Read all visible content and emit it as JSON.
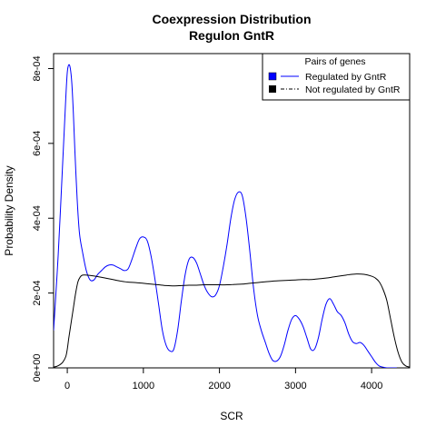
{
  "chart_data": {
    "type": "line",
    "title": "Coexpression Distribution",
    "subtitle": "Regulon GntR",
    "xlabel": "SCR",
    "ylabel": "Probability Density",
    "xlim": [
      -180,
      4500
    ],
    "ylim": [
      0,
      0.00084
    ],
    "x_ticks": [
      0,
      1000,
      2000,
      3000,
      4000
    ],
    "x_tick_labels": [
      "0",
      "1000",
      "2000",
      "3000",
      "4000"
    ],
    "y_ticks": [
      0,
      0.0002,
      0.0004,
      0.0006,
      0.0008
    ],
    "y_tick_labels": [
      "0e+00",
      "2e-04",
      "4e-04",
      "6e-04",
      "8e-04"
    ],
    "grid": false,
    "legend": {
      "title": "Pairs of genes",
      "placement": "top-right",
      "entries": [
        "Regulated by  GntR",
        "Not regulated by  GntR"
      ]
    },
    "series": [
      {
        "name": "Regulated by  GntR",
        "color": "#0000ff",
        "linestyle": "solid",
        "x": [
          -180,
          -120,
          -60,
          -20,
          0,
          20,
          40,
          60,
          80,
          100,
          130,
          160,
          200,
          250,
          300,
          350,
          400,
          450,
          500,
          550,
          600,
          650,
          700,
          750,
          800,
          850,
          900,
          950,
          1000,
          1050,
          1100,
          1150,
          1200,
          1250,
          1300,
          1350,
          1400,
          1450,
          1500,
          1550,
          1600,
          1650,
          1700,
          1750,
          1800,
          1850,
          1900,
          1950,
          2000,
          2050,
          2100,
          2150,
          2200,
          2250,
          2300,
          2350,
          2400,
          2450,
          2500,
          2550,
          2600,
          2650,
          2700,
          2750,
          2800,
          2850,
          2900,
          2950,
          3000,
          3050,
          3100,
          3150,
          3200,
          3250,
          3300,
          3350,
          3400,
          3450,
          3500,
          3550,
          3600,
          3650,
          3700,
          3750,
          3800,
          3850,
          3900,
          3950,
          4000,
          4050,
          4100,
          4150,
          4200,
          4250,
          4300,
          4330
        ],
        "y": [
          0.0001,
          0.0003,
          0.00055,
          0.00072,
          0.00079,
          0.00081,
          0.0008,
          0.00076,
          0.00068,
          0.00058,
          0.00045,
          0.00036,
          0.00031,
          0.00026,
          0.000235,
          0.000235,
          0.00025,
          0.00026,
          0.00027,
          0.000275,
          0.000275,
          0.00027,
          0.000265,
          0.00026,
          0.000265,
          0.00029,
          0.00032,
          0.000345,
          0.00035,
          0.00034,
          0.0003,
          0.00024,
          0.00017,
          0.0001,
          6e-05,
          4.5e-05,
          5e-05,
          0.0001,
          0.00018,
          0.00025,
          0.00029,
          0.000295,
          0.00028,
          0.00025,
          0.00022,
          0.0002,
          0.00019,
          0.000195,
          0.00022,
          0.00027,
          0.00033,
          0.0004,
          0.00045,
          0.00047,
          0.00046,
          0.0004,
          0.00031,
          0.00021,
          0.00014,
          0.0001,
          7e-05,
          4e-05,
          2e-05,
          1.8e-05,
          3e-05,
          6e-05,
          0.0001,
          0.00013,
          0.00014,
          0.00013,
          0.00011,
          8e-05,
          5e-05,
          5e-05,
          8e-05,
          0.00013,
          0.00017,
          0.000185,
          0.00017,
          0.00015,
          0.00014,
          0.00012,
          9e-05,
          7e-05,
          6.5e-05,
          6.8e-05,
          6e-05,
          4.5e-05,
          3e-05,
          1.5e-05,
          5e-06,
          2e-06,
          0,
          0,
          0,
          0
        ]
      },
      {
        "name": "Not regulated by  GntR",
        "color": "#000000",
        "linestyle": "solid",
        "x": [
          -180,
          -140,
          -100,
          -60,
          -20,
          0,
          20,
          50,
          80,
          110,
          140,
          170,
          200,
          250,
          300,
          400,
          500,
          600,
          700,
          800,
          900,
          1000,
          1100,
          1200,
          1300,
          1400,
          1500,
          1600,
          1700,
          1800,
          1900,
          2000,
          2100,
          2200,
          2300,
          2400,
          2500,
          2600,
          2700,
          2800,
          2900,
          3000,
          3100,
          3200,
          3300,
          3400,
          3500,
          3600,
          3700,
          3800,
          3900,
          4000,
          4050,
          4100,
          4150,
          4200,
          4250,
          4300,
          4350,
          4400,
          4450,
          4500
        ],
        "y": [
          2e-06,
          4e-06,
          8e-06,
          1.5e-05,
          3e-05,
          5e-05,
          8e-05,
          0.00012,
          0.00016,
          0.0002,
          0.00023,
          0.000243,
          0.000248,
          0.000248,
          0.000247,
          0.000244,
          0.00024,
          0.000236,
          0.000232,
          0.000229,
          0.000228,
          0.000226,
          0.000224,
          0.000222,
          0.00022,
          0.000219,
          0.00022,
          0.000221,
          0.000221,
          0.000222,
          0.000222,
          0.000222,
          0.000222,
          0.000223,
          0.000224,
          0.000226,
          0.000228,
          0.00023,
          0.000232,
          0.000233,
          0.000234,
          0.000235,
          0.000236,
          0.000236,
          0.000238,
          0.00024,
          0.000243,
          0.000246,
          0.000249,
          0.000251,
          0.00025,
          0.000245,
          0.00024,
          0.00023,
          0.00021,
          0.00018,
          0.00013,
          8e-05,
          4e-05,
          1.5e-05,
          5e-06,
          2e-06
        ]
      }
    ]
  }
}
